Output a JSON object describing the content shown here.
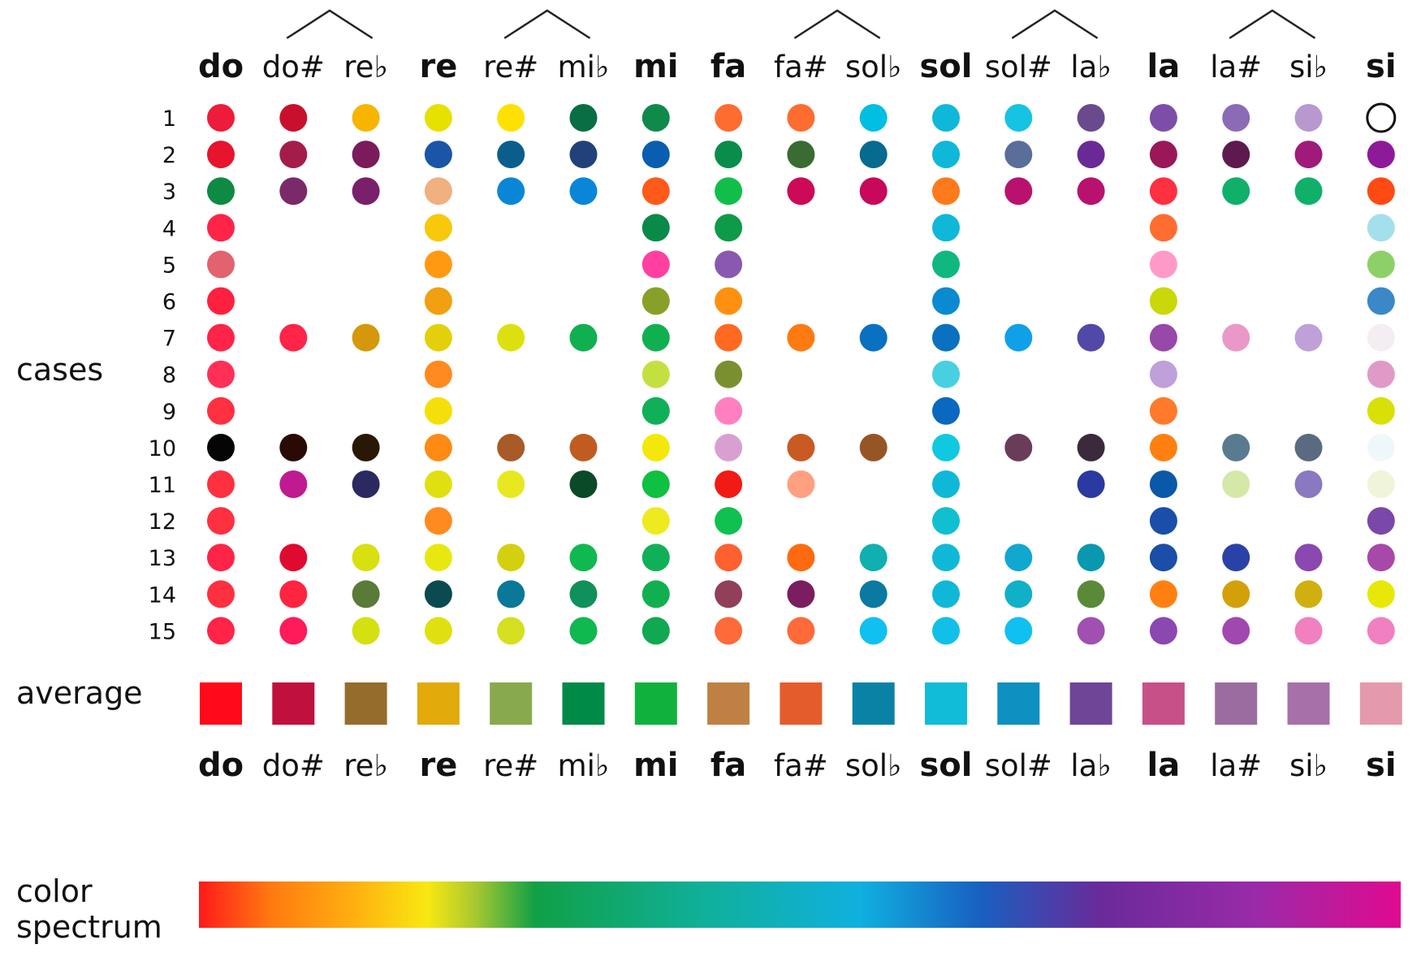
{
  "labels": {
    "cases": "cases",
    "average": "average",
    "spectrum_line1": "color",
    "spectrum_line2": "spectrum"
  },
  "chart_data": {
    "type": "dot-matrix",
    "notes": [
      {
        "name": "do",
        "bold": true
      },
      {
        "name": "do#",
        "bold": false
      },
      {
        "name": "re♭",
        "bold": false
      },
      {
        "name": "re",
        "bold": true
      },
      {
        "name": "re#",
        "bold": false
      },
      {
        "name": "mi♭",
        "bold": false
      },
      {
        "name": "mi",
        "bold": true
      },
      {
        "name": "fa",
        "bold": true
      },
      {
        "name": "fa#",
        "bold": false
      },
      {
        "name": "sol♭",
        "bold": false
      },
      {
        "name": "sol",
        "bold": true
      },
      {
        "name": "sol#",
        "bold": false
      },
      {
        "name": "la♭",
        "bold": false
      },
      {
        "name": "la",
        "bold": true
      },
      {
        "name": "la#",
        "bold": false
      },
      {
        "name": "si♭",
        "bold": false
      },
      {
        "name": "si",
        "bold": true
      }
    ],
    "enharmonic_pairs": [
      [
        1,
        2
      ],
      [
        4,
        5
      ],
      [
        8,
        9
      ],
      [
        11,
        12
      ],
      [
        14,
        15
      ]
    ],
    "cases": [
      "1",
      "2",
      "3",
      "4",
      "5",
      "6",
      "7",
      "8",
      "9",
      "10",
      "11",
      "12",
      "13",
      "14",
      "15"
    ],
    "dots": [
      [
        "#ed1c3a",
        "#c8102e",
        "#f7b500",
        "#e7e100",
        "#ffe100",
        "#0a6e45",
        "#0f8a4a",
        "#ff6c2f",
        "#ff6c2f",
        "#00bfe0",
        "#0fb8d8",
        "#16c3e2",
        "#6a4a8c",
        "#7c4ea8",
        "#8b6bb5",
        "#b998d0",
        "#ffffff"
      ],
      [
        "#e8132d",
        "#a51c4a",
        "#7a1b5b",
        "#1b55a8",
        "#0b5e8c",
        "#22407a",
        "#0b5db0",
        "#0a8c4a",
        "#3a6b32",
        "#066b8e",
        "#0fb8d8",
        "#5a6e9a",
        "#6a2a95",
        "#9a1858",
        "#5e1a4e",
        "#a01a7a",
        "#8e1a9a"
      ],
      [
        "#0d8a43",
        "#7a2a6a",
        "#7a1f6c",
        "#f0b080",
        "#0a86d8",
        "#0a86d8",
        "#ff5a1a",
        "#12be4a",
        "#cc0a58",
        "#c8085a",
        "#ff7a1a",
        "#b8126e",
        "#b8126e",
        "#ff3040",
        "#10b06a",
        "#10b06a",
        "#ff4a14"
      ],
      [
        "#ff2448",
        null,
        null,
        "#f7c90a",
        null,
        null,
        "#0a8a48",
        "#0f9a4a",
        null,
        null,
        "#0fb8d8",
        null,
        null,
        "#ff6e30",
        null,
        null,
        "#a4e0ec"
      ],
      [
        "#e26270",
        null,
        null,
        "#ff9a10",
        null,
        null,
        "#ff40a0",
        "#8a58b0",
        null,
        null,
        "#10b880",
        null,
        null,
        "#ff9ac8",
        null,
        null,
        "#8ed068"
      ],
      [
        "#ff2040",
        null,
        null,
        "#f0a010",
        null,
        null,
        "#88a028",
        "#ff9010",
        null,
        null,
        "#0a8ad0",
        null,
        null,
        "#c8d808",
        null,
        null,
        "#3a88c8"
      ],
      [
        "#ff2448",
        "#ff2448",
        "#d4980a",
        "#e4d00a",
        "#dde010",
        "#10b050",
        "#10b050",
        "#ff6a20",
        "#ff7a10",
        "#0a70c0",
        "#0a70c0",
        "#10a0e8",
        "#5248a8",
        "#9848a8",
        "#ea98c8",
        "#c0a0d8",
        "#f4eef2"
      ],
      [
        "#ff3058",
        null,
        null,
        "#ff8a20",
        null,
        null,
        "#c4e040",
        "#7a9030",
        null,
        null,
        "#48d0e0",
        null,
        null,
        "#c0a0d8",
        null,
        null,
        "#e09ac8"
      ],
      [
        "#ff3040",
        null,
        null,
        "#f4e008",
        null,
        null,
        "#10b058",
        "#ff80c0",
        null,
        null,
        "#0a68c0",
        null,
        null,
        "#ff7a2a",
        null,
        null,
        "#d8e008"
      ],
      [
        "#050505",
        "#2a0a04",
        "#2a1806",
        "#ff8a14",
        "#a85a28",
        "#c05c20",
        "#f4e808",
        "#d8a0d0",
        "#c85a22",
        "#965524",
        "#10c8e0",
        "#6a3c5a",
        "#3a2a3c",
        "#ff8010",
        "#5a7a90",
        "#5a6a80",
        "#eef8fa"
      ],
      [
        "#ff3040",
        "#c01a90",
        "#2a2a60",
        "#e0e010",
        "#e8e820",
        "#0a4a28",
        "#10c040",
        "#f21a14",
        "#ffa080",
        null,
        "#10b8d8",
        null,
        "#2a3aa0",
        "#0a58a8",
        "#d4e8a8",
        "#8a78c0",
        "#f0f4d8"
      ],
      [
        "#ff3040",
        null,
        null,
        "#ff8a20",
        null,
        null,
        "#eeea20",
        "#10c050",
        null,
        null,
        "#10c0d0",
        null,
        null,
        "#1a4ea8",
        null,
        null,
        "#7a48a8"
      ],
      [
        "#ff2448",
        "#e00a30",
        "#d8e010",
        "#e8e810",
        "#d4d010",
        "#10b850",
        "#10b058",
        "#ff6030",
        "#ff6a10",
        "#10b0b0",
        "#10b8d8",
        "#10a8d0",
        "#0a98b0",
        "#1a4ea8",
        "#2a42a8",
        "#8a48b0",
        "#a848a8"
      ],
      [
        "#ff3040",
        "#ff2440",
        "#5a7a38",
        "#0a4a50",
        "#0a7898",
        "#10905a",
        "#10b050",
        "#904058",
        "#7a1e60",
        "#0a7aa0",
        "#10b8d8",
        "#10b0c8",
        "#5a8a38",
        "#ff8010",
        "#d4a00a",
        "#d0b010",
        "#e8e808"
      ],
      [
        "#ff2448",
        "#ff1a5a",
        "#d4e010",
        "#e0e010",
        "#d4e020",
        "#10b850",
        "#10a850",
        "#ff6a3a",
        "#ff6a3a",
        "#10c0f0",
        "#10c0e8",
        "#10c0f0",
        "#a050b0",
        "#8a48b0",
        "#a048b0",
        "#f080c0",
        "#f080c0"
      ]
    ],
    "averages": [
      "#ff0a1a",
      "#c0103e",
      "#966c2c",
      "#e2aa0a",
      "#88aa4c",
      "#008a48",
      "#10b23c",
      "#c08044",
      "#e45c2c",
      "#0a82a6",
      "#10bcd8",
      "#0e90c0",
      "#6e4698",
      "#c85088",
      "#9a6ca0",
      "#a870a8",
      "#e49aac"
    ],
    "spectrum_stops": [
      {
        "pos": 0.0,
        "color": "#ff1a1a"
      },
      {
        "pos": 0.06,
        "color": "#ff7a10"
      },
      {
        "pos": 0.13,
        "color": "#ffb010"
      },
      {
        "pos": 0.19,
        "color": "#f8e810"
      },
      {
        "pos": 0.23,
        "color": "#a8c830"
      },
      {
        "pos": 0.28,
        "color": "#10a046"
      },
      {
        "pos": 0.42,
        "color": "#10b09a"
      },
      {
        "pos": 0.55,
        "color": "#10b0e0"
      },
      {
        "pos": 0.65,
        "color": "#1860c0"
      },
      {
        "pos": 0.75,
        "color": "#6a2a9a"
      },
      {
        "pos": 0.88,
        "color": "#9a2aa8"
      },
      {
        "pos": 1.0,
        "color": "#e00a90"
      }
    ]
  }
}
